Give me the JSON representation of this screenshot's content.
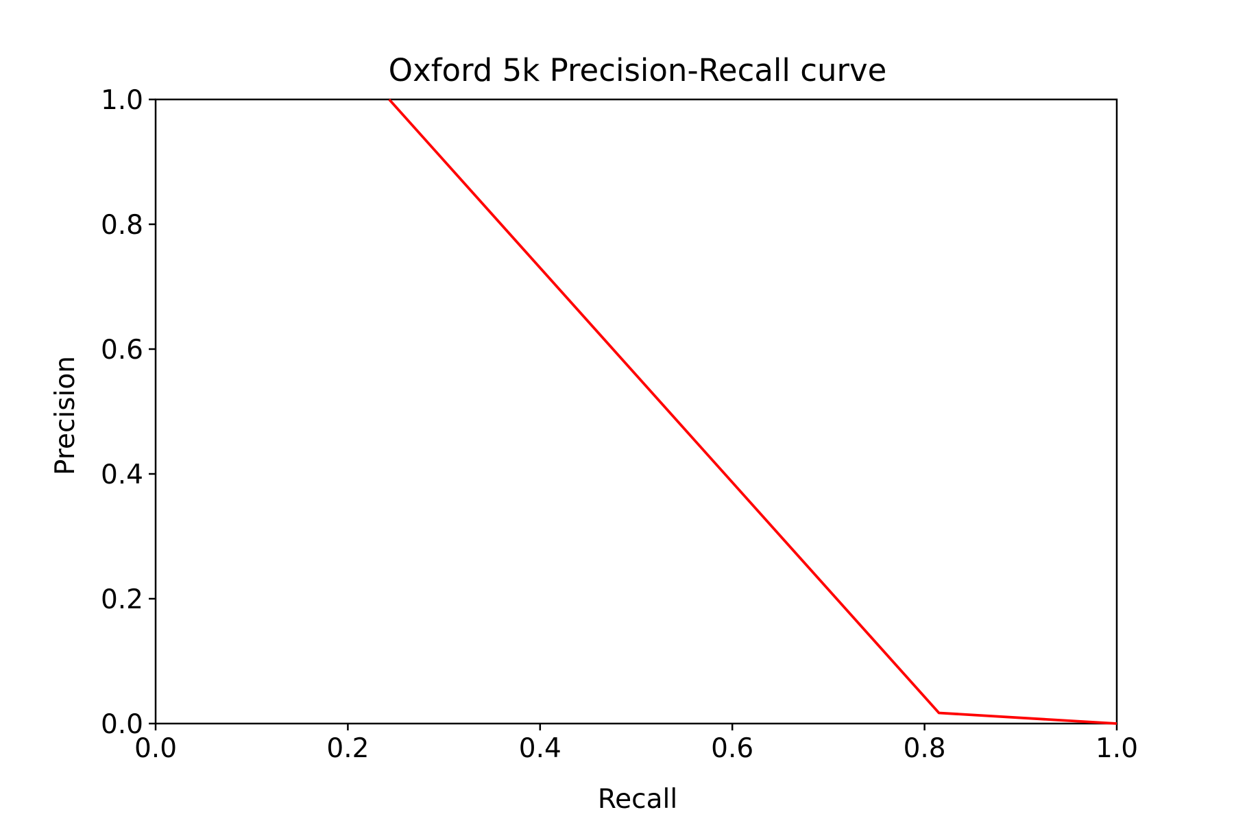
{
  "chart_data": {
    "type": "line",
    "title": "Oxford 5k Precision-Recall curve",
    "xlabel": "Recall",
    "ylabel": "Precision",
    "xlim": [
      0.0,
      1.0
    ],
    "ylim": [
      0.0,
      1.0
    ],
    "xticks": [
      "0.0",
      "0.2",
      "0.4",
      "0.6",
      "0.8",
      "1.0"
    ],
    "yticks": [
      "0.0",
      "0.2",
      "0.4",
      "0.6",
      "0.8",
      "1.0"
    ],
    "grid": false,
    "series": [
      {
        "color": "#ff0000",
        "x": [
          0.243,
          0.815,
          1.0
        ],
        "y": [
          1.0,
          0.017,
          0.0
        ]
      }
    ]
  }
}
